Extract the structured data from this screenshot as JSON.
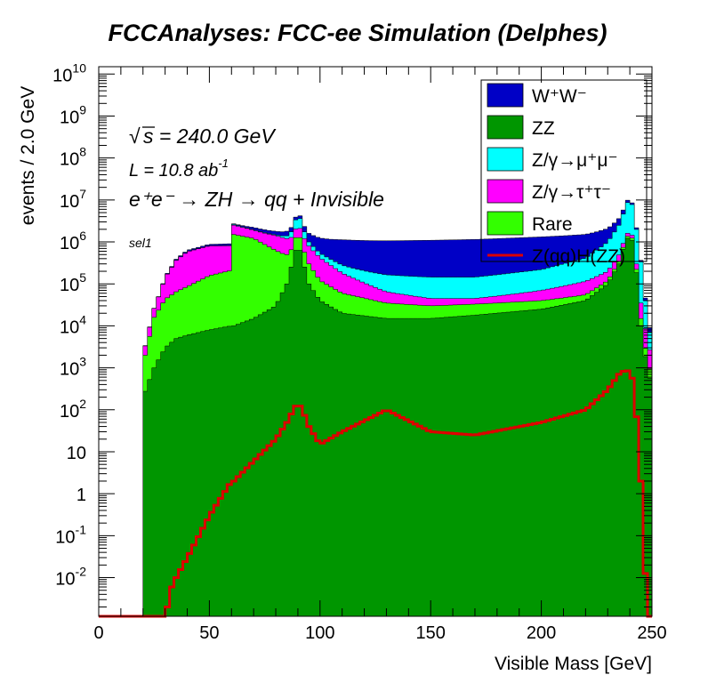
{
  "chart_data": {
    "type": "area",
    "title": "FCCAnalyses: FCC-ee Simulation (Delphes)",
    "xlabel": "Visible Mass [GeV]",
    "ylabel": "events / 2.0 GeV",
    "xlim": [
      0,
      250
    ],
    "ylim": [
      0.0012,
      15000000000
    ],
    "y_scale": "log",
    "grid": false,
    "legend_position": "top-right",
    "x_ticks": [
      "0",
      "50",
      "100",
      "150",
      "200",
      "250"
    ],
    "y_ticks": [
      {
        "base": "10",
        "exp": "-2"
      },
      {
        "base": "10",
        "exp": "-1"
      },
      {
        "base": "1",
        "exp": ""
      },
      {
        "base": "10",
        "exp": ""
      },
      {
        "base": "10",
        "exp": "2"
      },
      {
        "base": "10",
        "exp": "3"
      },
      {
        "base": "10",
        "exp": "4"
      },
      {
        "base": "10",
        "exp": "5"
      },
      {
        "base": "10",
        "exp": "6"
      },
      {
        "base": "10",
        "exp": "7"
      },
      {
        "base": "10",
        "exp": "8"
      },
      {
        "base": "10",
        "exp": "9"
      },
      {
        "base": "10",
        "exp": "10"
      }
    ],
    "annotations": {
      "sqrt_s": "s = 240.0 GeV",
      "lumi": "L = 10.8 ab",
      "lumi_exp": "-1",
      "process": "e⁺e⁻ → ZH → qq + Invisible",
      "selection": "sel1"
    },
    "legend": [
      {
        "name": "W⁺W⁻",
        "color": "#0000c6"
      },
      {
        "name": "ZZ",
        "color": "#009600"
      },
      {
        "name": "Z/γ→μ⁺μ⁻",
        "color": "#00ffff"
      },
      {
        "name": "Z/γ→τ⁺τ⁻",
        "color": "#ff00ff"
      },
      {
        "name": "Rare",
        "color": "#33ff00"
      },
      {
        "name": "Z(qq)H(ZZ)",
        "color": "#dd0000"
      }
    ],
    "x": [
      20,
      25,
      30,
      35,
      40,
      50,
      60,
      61,
      70,
      80,
      85,
      88,
      90,
      92,
      95,
      100,
      110,
      130,
      150,
      170,
      200,
      220,
      230,
      235,
      238,
      240,
      242,
      245,
      248,
      250
    ],
    "series": [
      {
        "name": "ZZ",
        "stacked": true,
        "values": [
          200,
          1000,
          3000,
          5000,
          6000,
          8000,
          10000,
          10000,
          15000,
          30000,
          100000,
          400000,
          1000000,
          400000,
          100000,
          40000,
          20000,
          15000,
          15000,
          18000,
          25000,
          40000,
          100000,
          300000,
          1000000,
          1500000,
          800000,
          10000,
          800,
          400
        ]
      },
      {
        "name": "Rare",
        "stacked": true,
        "values": [
          1000,
          15000,
          40000,
          60000,
          80000,
          150000,
          200000,
          1500000,
          1200000,
          600000,
          400000,
          400000,
          1000000,
          400000,
          200000,
          80000,
          40000,
          20000,
          15000,
          15000,
          15000,
          15000,
          20000,
          40000,
          100000,
          200000,
          100000,
          5000,
          500,
          300
        ]
      },
      {
        "name": "Z/γ→τ⁺τ⁻",
        "stacked": true,
        "values": [
          800,
          10000,
          100000,
          300000,
          500000,
          650000,
          600000,
          1000000,
          700000,
          800000,
          700000,
          600000,
          1000000,
          700000,
          500000,
          300000,
          120000,
          30000,
          15000,
          12000,
          30000,
          60000,
          80000,
          150000,
          200000,
          300000,
          150000,
          20000,
          3000,
          1000
        ]
      },
      {
        "name": "Z/γ→μ⁺μ⁻",
        "stacked": true,
        "values": [
          0,
          50,
          500,
          2000,
          5000,
          10000,
          20000,
          100000,
          50000,
          60000,
          200000,
          700000,
          2500000,
          900000,
          200000,
          120000,
          100000,
          100000,
          100000,
          100000,
          150000,
          300000,
          800000,
          2000000,
          5000000,
          10000000,
          4000000,
          300000,
          10000,
          2000
        ]
      },
      {
        "name": "W⁺W⁻",
        "stacked": true,
        "values": [
          0,
          300,
          5000,
          20000,
          40000,
          60000,
          80000,
          100000,
          250000,
          300000,
          400000,
          500000,
          600000,
          600000,
          600000,
          700000,
          850000,
          900000,
          950000,
          1000000,
          1100000,
          1100000,
          1100000,
          1100000,
          1200000,
          1200000,
          500000,
          30000,
          3000,
          1000
        ]
      },
      {
        "name": "Z(qq)H(ZZ)",
        "stacked": false,
        "values": [
          0,
          0,
          0,
          0.01,
          0.03,
          0.3,
          2,
          2,
          6,
          20,
          50,
          100,
          150,
          100,
          40,
          15,
          30,
          100,
          30,
          25,
          50,
          100,
          300,
          700,
          900,
          800,
          400,
          2,
          0.001,
          0
        ]
      }
    ]
  }
}
